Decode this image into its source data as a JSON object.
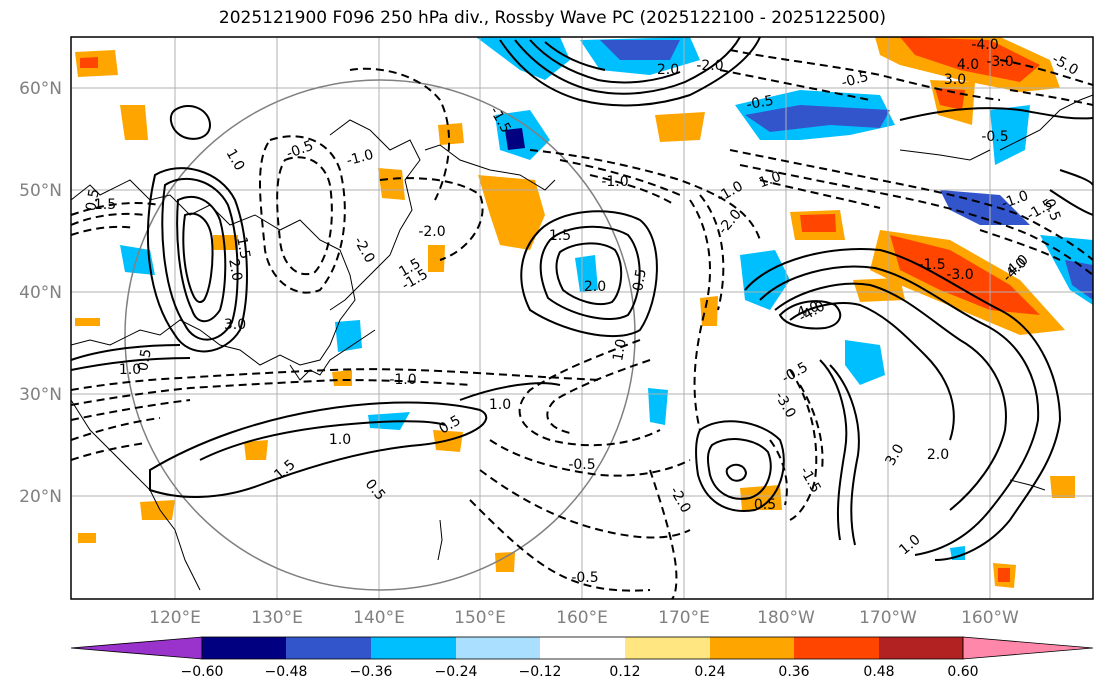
{
  "title": "2025121900 F096 250 hPa div., Rossby Wave PC (2025122100 - 2025122500)",
  "x_axis_labels": [
    "120°E",
    "130°E",
    "140°E",
    "150°E",
    "160°E",
    "170°E",
    "180°W",
    "170°W",
    "160°W"
  ],
  "y_axis_labels": [
    "60°N",
    "50°N",
    "40°N",
    "30°N",
    "20°N"
  ],
  "colorbar": {
    "tick_labels": [
      "−0.60",
      "−0.48",
      "−0.36",
      "−0.24",
      "−0.12",
      "0.12",
      "0.24",
      "0.36",
      "0.48",
      "0.60"
    ],
    "colors": [
      "#9933cc",
      "#000080",
      "#3355cc",
      "#00bfff",
      "#aadfff",
      "#ffffff",
      "#ffe680",
      "#ffa500",
      "#ff4500",
      "#b22222",
      "#ff88aa"
    ]
  },
  "contour_labels": [
    {
      "t": "-0.5"
    },
    {
      "t": "-1.0"
    },
    {
      "t": "-2.0"
    },
    {
      "t": "-1.5"
    },
    {
      "t": "-4.0"
    },
    {
      "t": "-3.0"
    },
    {
      "t": "-5.0"
    },
    {
      "t": "1.0"
    },
    {
      "t": "1.5"
    },
    {
      "t": "2.0"
    },
    {
      "t": "3.0"
    },
    {
      "t": "4.0"
    },
    {
      "t": "0.5"
    }
  ],
  "colors": {
    "positive_fill": "#ffa500",
    "negative_fill": "#00bfff",
    "grid": "#b0b0b0"
  }
}
